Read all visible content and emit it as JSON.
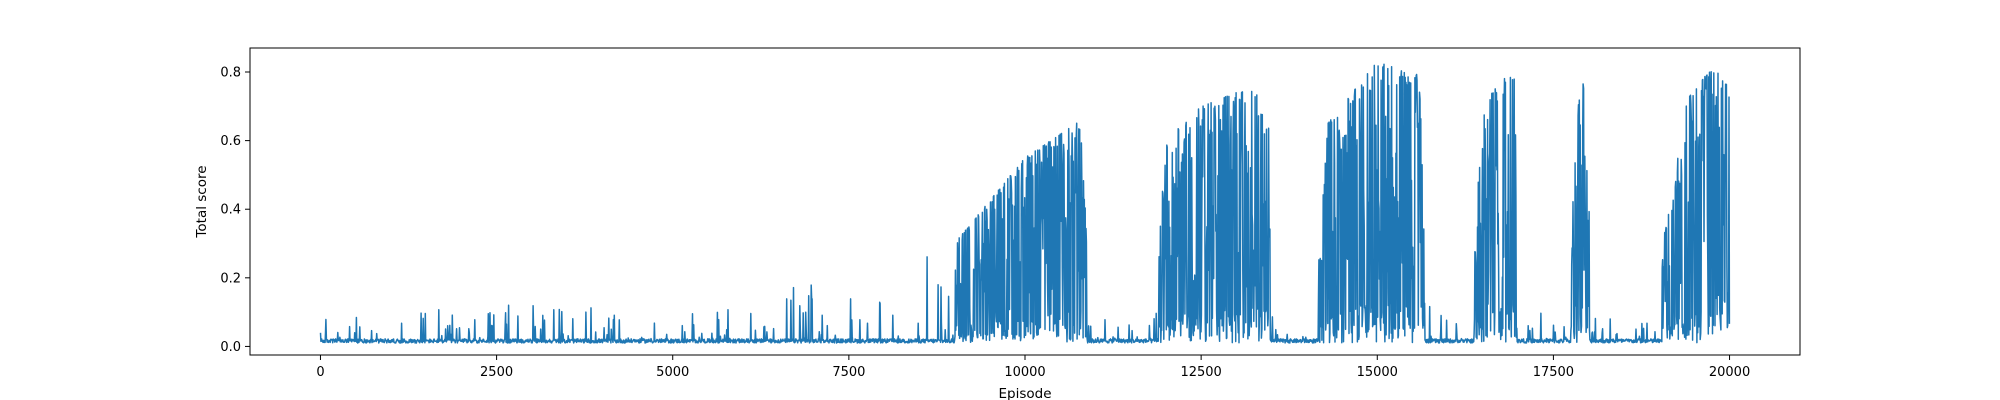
{
  "chart_data": {
    "type": "line",
    "title": "",
    "xlabel": "Episode",
    "ylabel": "Total score",
    "xlim": [
      -1000,
      21000
    ],
    "ylim": [
      -0.025,
      0.87
    ],
    "xticks": [
      0,
      2500,
      5000,
      7500,
      10000,
      12500,
      15000,
      17500,
      20000
    ],
    "yticks": [
      0.0,
      0.2,
      0.4,
      0.6,
      0.8
    ],
    "ytick_labels": [
      "0.0",
      "0.2",
      "0.4",
      "0.6",
      "0.8"
    ],
    "grid": false,
    "legend": false,
    "series": [
      {
        "color": "#1f77b4",
        "episodes": 20000,
        "baseline": 0.01,
        "envelope": [
          {
            "x": 0,
            "low": 0.01,
            "high": 0.1
          },
          {
            "x": 2500,
            "low": 0.01,
            "high": 0.12
          },
          {
            "x": 5000,
            "low": 0.01,
            "high": 0.12
          },
          {
            "x": 7500,
            "low": 0.01,
            "high": 0.2
          },
          {
            "x": 9000,
            "low": 0.01,
            "high": 0.3
          },
          {
            "x": 10000,
            "low": 0.01,
            "high": 0.55
          },
          {
            "x": 10800,
            "low": 0.01,
            "high": 0.66
          },
          {
            "x": 10900,
            "low": 0.02,
            "high": 0.2
          },
          {
            "x": 11000,
            "low": 0.02,
            "high": 0.11
          },
          {
            "x": 11800,
            "low": 0.01,
            "high": 0.06
          },
          {
            "x": 12000,
            "low": 0.01,
            "high": 0.6
          },
          {
            "x": 12500,
            "low": 0.01,
            "high": 0.7
          },
          {
            "x": 13000,
            "low": 0.01,
            "high": 0.74
          },
          {
            "x": 13450,
            "low": 0.01,
            "high": 0.75
          },
          {
            "x": 13500,
            "low": 0.02,
            "high": 0.1
          },
          {
            "x": 14100,
            "low": 0.01,
            "high": 0.04
          },
          {
            "x": 14300,
            "low": 0.01,
            "high": 0.65
          },
          {
            "x": 14800,
            "low": 0.01,
            "high": 0.78
          },
          {
            "x": 15000,
            "low": 0.01,
            "high": 0.83
          },
          {
            "x": 15600,
            "low": 0.01,
            "high": 0.79
          },
          {
            "x": 15700,
            "low": 0.02,
            "high": 0.12
          },
          {
            "x": 16300,
            "low": 0.01,
            "high": 0.08
          },
          {
            "x": 16500,
            "low": 0.01,
            "high": 0.7
          },
          {
            "x": 16800,
            "low": 0.01,
            "high": 0.79
          },
          {
            "x": 16950,
            "low": 0.01,
            "high": 0.78
          },
          {
            "x": 17000,
            "low": 0.02,
            "high": 0.1
          },
          {
            "x": 17700,
            "low": 0.02,
            "high": 0.12
          },
          {
            "x": 17850,
            "low": 0.01,
            "high": 0.7
          },
          {
            "x": 17950,
            "low": 0.01,
            "high": 0.8
          },
          {
            "x": 18050,
            "low": 0.02,
            "high": 0.1
          },
          {
            "x": 18800,
            "low": 0.01,
            "high": 0.08
          },
          {
            "x": 19100,
            "low": 0.01,
            "high": 0.35
          },
          {
            "x": 19400,
            "low": 0.01,
            "high": 0.72
          },
          {
            "x": 19700,
            "low": 0.01,
            "high": 0.8
          },
          {
            "x": 20000,
            "low": 0.06,
            "high": 0.81
          }
        ]
      }
    ]
  }
}
